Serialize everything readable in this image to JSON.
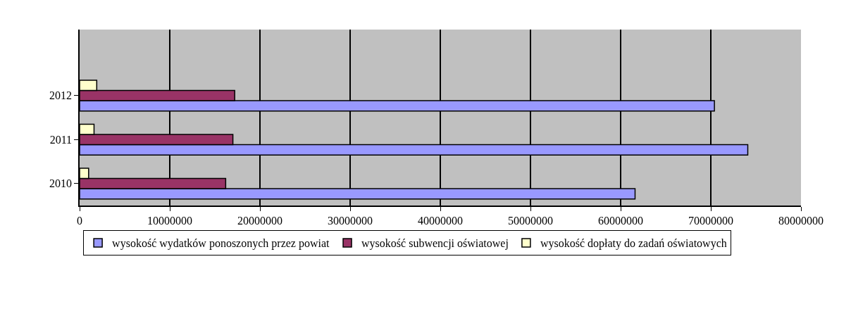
{
  "chart_data": {
    "type": "bar",
    "orientation": "horizontal",
    "categories": [
      null,
      "2012",
      "2011",
      "2010"
    ],
    "series": [
      {
        "name": "wysokość wydatków ponoszonych przez powiat",
        "color": "#9999ff",
        "values": [
          null,
          70400000,
          74100000,
          61600000
        ]
      },
      {
        "name": "wysokość subwencji oświatowej",
        "color": "#993366",
        "values": [
          null,
          17200000,
          17000000,
          16200000
        ]
      },
      {
        "name": "wysokość dopłaty do zadań oświatowych",
        "color": "#ffffcc",
        "values": [
          null,
          1900000,
          1600000,
          1000000
        ]
      }
    ],
    "xlim": [
      0,
      80000000
    ],
    "xticks": [
      0,
      10000000,
      20000000,
      30000000,
      40000000,
      50000000,
      60000000,
      70000000,
      80000000
    ],
    "grid": "x",
    "legend": "bottom"
  }
}
